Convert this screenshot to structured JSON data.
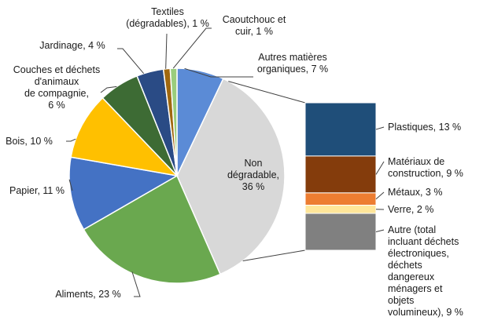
{
  "chart_data": {
    "type": "pie",
    "title": "",
    "slices": [
      {
        "label_lines": [
          "Autres matières",
          "organiques, 7 %"
        ],
        "value": 7,
        "color": "#5b8bd6"
      },
      {
        "label_lines": [
          "Non",
          "dégradable,",
          "36 %"
        ],
        "value": 36,
        "color": "#d8d8d8"
      },
      {
        "label_lines": [
          "Aliments, 23 %"
        ],
        "value": 23,
        "color": "#6aa84f"
      },
      {
        "label_lines": [
          "Papier, 11 %"
        ],
        "value": 11,
        "color": "#4472c4"
      },
      {
        "label_lines": [
          "Bois, 10 %"
        ],
        "value": 10,
        "color": "#ffc000"
      },
      {
        "label_lines": [
          "Couches et déchets",
          "d'animaux",
          "de compagnie,",
          "6 %"
        ],
        "value": 6,
        "color": "#3d6b34"
      },
      {
        "label_lines": [
          "Jardinage,  4 %"
        ],
        "value": 4,
        "color": "#2a4b85"
      },
      {
        "label_lines": [
          "Textiles",
          "(dégradables), 1 %"
        ],
        "value": 1,
        "color": "#a0680f"
      },
      {
        "label_lines": [
          "Caoutchouc et",
          "cuir, 1 %"
        ],
        "value": 1,
        "color": "#9acd7c"
      }
    ],
    "breakdown": {
      "parent": "Non dégradable",
      "segments": [
        {
          "label_lines": [
            "Plastiques, 13 %"
          ],
          "value": 13,
          "color": "#1f4e79"
        },
        {
          "label_lines": [
            "Matériaux de",
            "construction, 9 %"
          ],
          "value": 9,
          "color": "#843c0c"
        },
        {
          "label_lines": [
            "Métaux,  3 %"
          ],
          "value": 3,
          "color": "#ed7d31"
        },
        {
          "label_lines": [
            "Verre, 2 %"
          ],
          "value": 2,
          "color": "#ffe699"
        },
        {
          "label_lines": [
            "Autre (total",
            "incluant déchets",
            "électroniques,",
            "déchets",
            "dangereux",
            "ménagers et",
            "objets",
            "volumineux), 9 %"
          ],
          "value": 9,
          "color": "#808080"
        }
      ]
    }
  }
}
